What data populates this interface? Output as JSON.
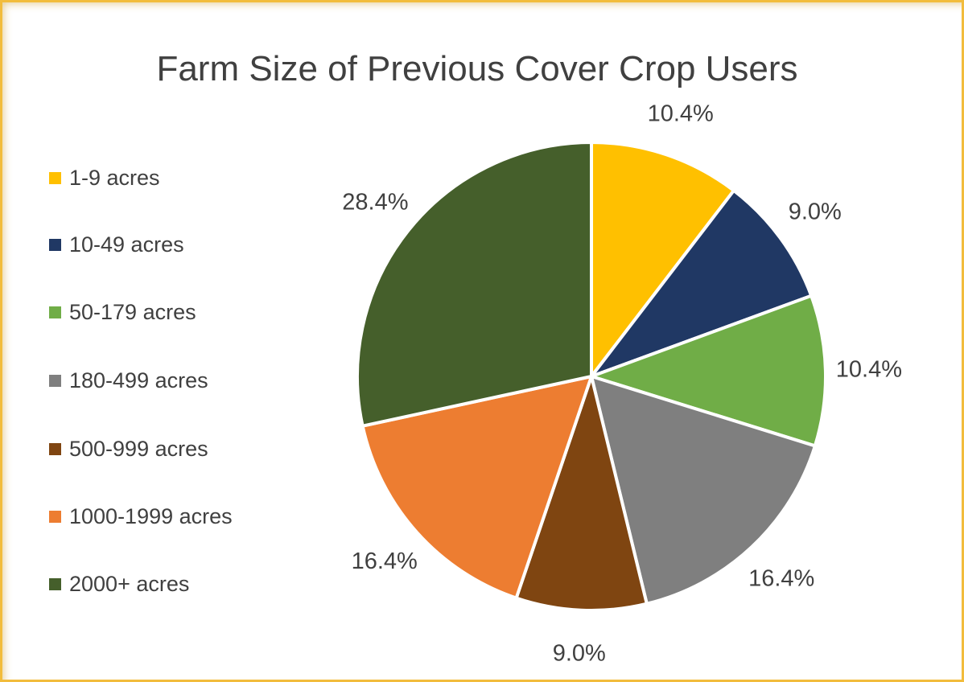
{
  "chart_data": {
    "type": "pie",
    "title": "Farm Size of Previous Cover Crop Users",
    "legend_position": "left",
    "start_angle": "top",
    "direction": "clockwise",
    "slices": [
      {
        "label": "1-9 acres",
        "value": 10.4,
        "display": "10.4%",
        "color": "#FFC000"
      },
      {
        "label": "10-49 acres",
        "value": 9.0,
        "display": "9.0%",
        "color": "#203864"
      },
      {
        "label": "50-179 acres",
        "value": 10.4,
        "display": "10.4%",
        "color": "#70AD47"
      },
      {
        "label": "180-499 acres",
        "value": 16.4,
        "display": "16.4%",
        "color": "#7F7F7F"
      },
      {
        "label": "500-999 acres",
        "value": 9.0,
        "display": "9.0%",
        "color": "#7F4511"
      },
      {
        "label": "1000-1999 acres",
        "value": 16.4,
        "display": "16.4%",
        "color": "#ED7D31"
      },
      {
        "label": "2000+ acres",
        "value": 28.4,
        "display": "28.4%",
        "color": "#455F2B"
      }
    ]
  }
}
